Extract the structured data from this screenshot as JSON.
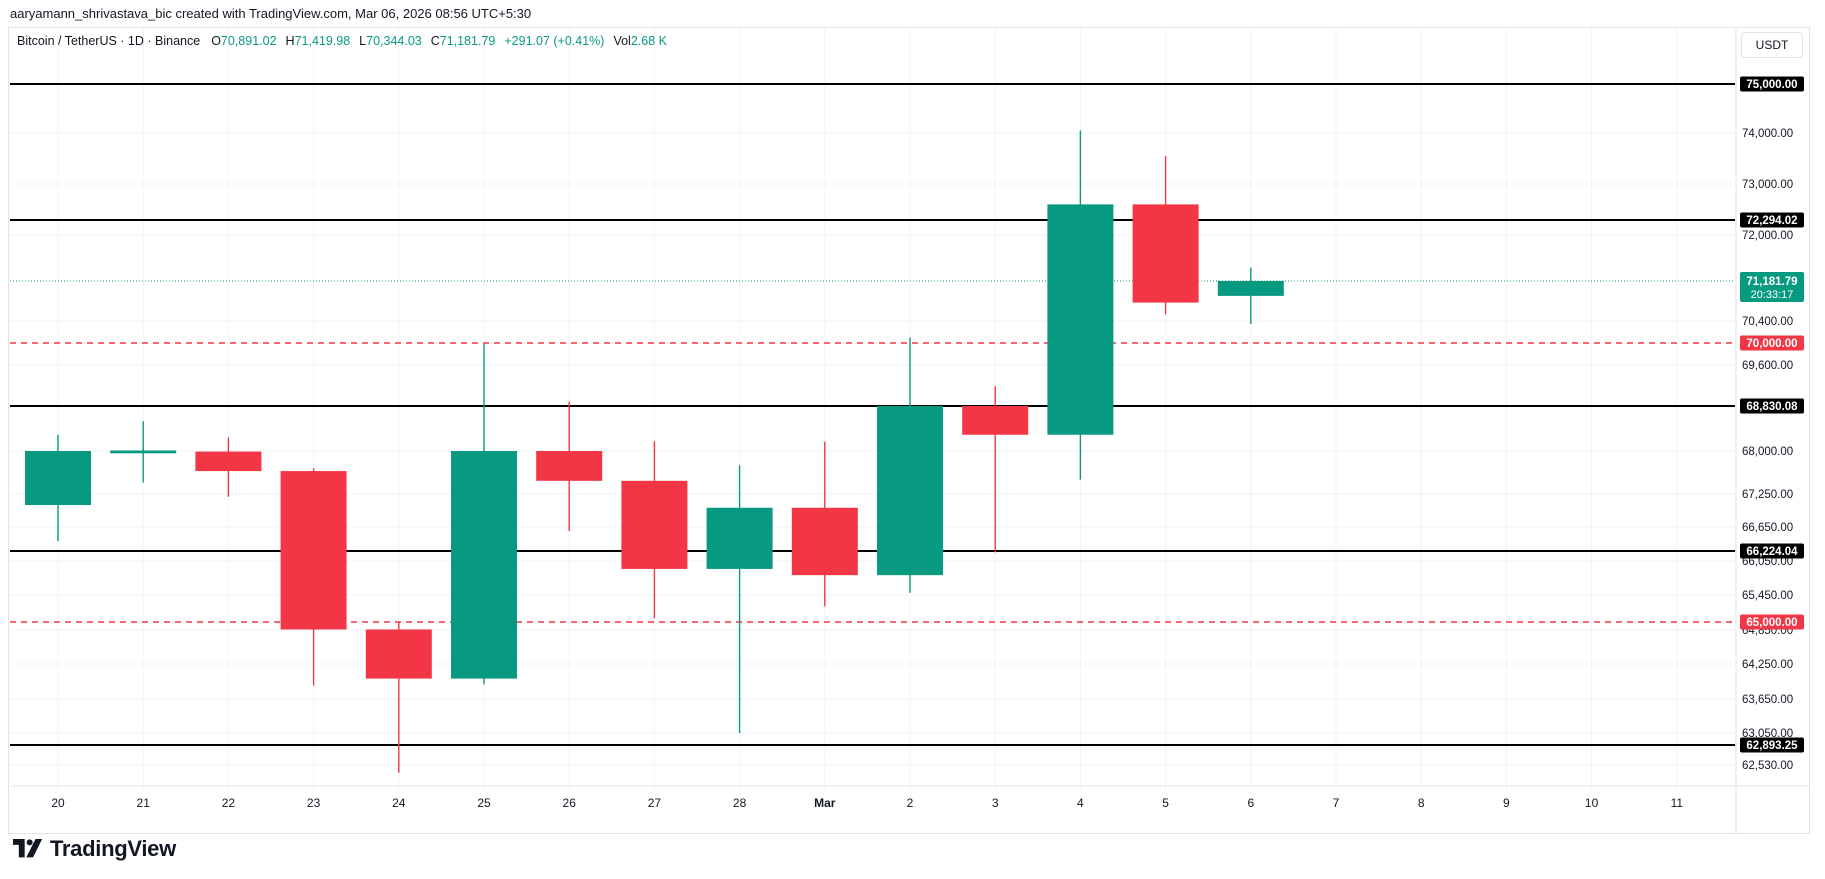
{
  "header": {
    "credit": "aaryamann_shrivastava_bic created with TradingView.com, Mar 06, 2026 08:56 UTC+5:30"
  },
  "legend": {
    "symbol": "Bitcoin / TetherUS · 1D · Binance",
    "open_label": "O",
    "open": "70,891.02",
    "high_label": "H",
    "high": "71,419.98",
    "low_label": "L",
    "low": "70,344.03",
    "close_label": "C",
    "close": "71,181.79",
    "change": "+291.07 (+0.41%)",
    "vol_label": "Vol",
    "vol": "2.68 K"
  },
  "currency": "USDT",
  "brand": "TradingView",
  "colors": {
    "up": "#089981",
    "down": "#f23645",
    "level": "#000000",
    "dashed": "#f23645"
  },
  "chart_data": {
    "type": "candlestick",
    "x_tick_labels": [
      "20",
      "21",
      "22",
      "23",
      "24",
      "25",
      "26",
      "27",
      "28",
      "Mar",
      "2",
      "3",
      "4",
      "5",
      "6",
      "7",
      "8",
      "9",
      "10",
      "11"
    ],
    "candles": [
      {
        "x": "20",
        "open": 67050,
        "high": 68300,
        "low": 66400,
        "close": 68000
      },
      {
        "x": "21",
        "open": 67960,
        "high": 68550,
        "low": 67450,
        "close": 68010
      },
      {
        "x": "22",
        "open": 67990,
        "high": 68250,
        "low": 67200,
        "close": 67650
      },
      {
        "x": "23",
        "open": 67650,
        "high": 67700,
        "low": 63880,
        "close": 64860
      },
      {
        "x": "24",
        "open": 64860,
        "high": 65000,
        "low": 62390,
        "close": 64000
      },
      {
        "x": "25",
        "open": 64000,
        "high": 69980,
        "low": 63900,
        "close": 68000
      },
      {
        "x": "26",
        "open": 68000,
        "high": 68910,
        "low": 66580,
        "close": 67480
      },
      {
        "x": "27",
        "open": 67480,
        "high": 68180,
        "low": 65060,
        "close": 65910
      },
      {
        "x": "28",
        "open": 65910,
        "high": 67750,
        "low": 63050,
        "close": 67000
      },
      {
        "x": "Mar",
        "open": 67000,
        "high": 68170,
        "low": 65260,
        "close": 65800
      },
      {
        "x": "2",
        "open": 65800,
        "high": 70100,
        "low": 65490,
        "close": 68830
      },
      {
        "x": "3",
        "open": 68830,
        "high": 69200,
        "low": 66200,
        "close": 68300
      },
      {
        "x": "4",
        "open": 68300,
        "high": 74050,
        "low": 67500,
        "close": 72600
      },
      {
        "x": "5",
        "open": 72600,
        "high": 73550,
        "low": 70530,
        "close": 70760
      },
      {
        "x": "6",
        "open": 70891.02,
        "high": 71419.98,
        "low": 70344.03,
        "close": 71181.79
      }
    ],
    "y_tick_labels": [
      "74,000.00",
      "73,000.00",
      "72,000.00",
      "70,400.00",
      "69,600.00",
      "68,000.00",
      "67,250.00",
      "66,650.00",
      "66,050.00",
      "65,450.00",
      "64,850.00",
      "64,250.00",
      "63,650.00",
      "63,050.00",
      "62,530.00"
    ],
    "horizontal_levels": [
      {
        "value": 75000,
        "label": "75,000.00",
        "style": "solid"
      },
      {
        "value": 72294.02,
        "label": "72,294.02",
        "style": "solid"
      },
      {
        "value": 70000,
        "label": "70,000.00",
        "style": "dashed"
      },
      {
        "value": 68830.08,
        "label": "68,830.08",
        "style": "solid"
      },
      {
        "value": 66224.04,
        "label": "66,224.04",
        "style": "solid"
      },
      {
        "value": 65000,
        "label": "65,000.00",
        "style": "dashed"
      },
      {
        "value": 62893.25,
        "label": "62,893.25",
        "style": "solid"
      }
    ],
    "last_price": {
      "value": 71181.79,
      "label": "71,181.79",
      "countdown": "20:33:17"
    }
  }
}
